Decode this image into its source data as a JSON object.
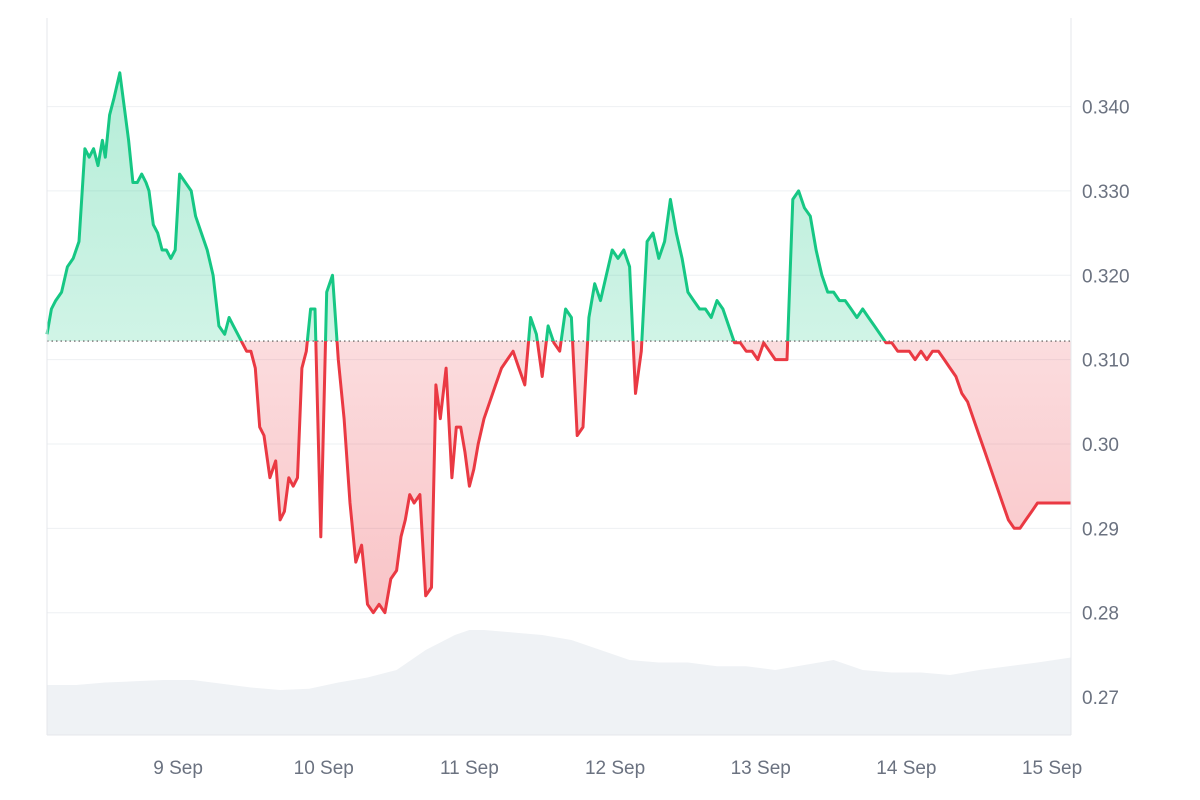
{
  "chart_data": {
    "type": "area",
    "baseline": 0.3122,
    "ylim": [
      0.2655,
      0.3505
    ],
    "y_ticks": [
      "0.340",
      "0.330",
      "0.320",
      "0.310",
      "0.30",
      "0.29",
      "0.28",
      "0.27"
    ],
    "y_tick_values": [
      0.34,
      0.33,
      0.32,
      0.31,
      0.3,
      0.29,
      0.28,
      0.27
    ],
    "x_ticks": [
      "9 Sep",
      "10 Sep",
      "11 Sep",
      "12 Sep",
      "13 Sep",
      "14 Sep",
      "15 Sep"
    ],
    "x_tick_values": [
      1,
      2,
      3,
      4,
      5,
      6,
      7
    ],
    "xlim": [
      0.1,
      7.13
    ],
    "grid": true,
    "colors": {
      "up": "#16c784",
      "down": "#ea3943",
      "grid": "#eef0f3",
      "baseline": "#555555",
      "volume": "#eff2f5",
      "axis_text": "#6b7280"
    },
    "price": {
      "x": [
        0.1,
        0.13,
        0.16,
        0.2,
        0.24,
        0.28,
        0.32,
        0.36,
        0.39,
        0.42,
        0.45,
        0.48,
        0.5,
        0.53,
        0.56,
        0.6,
        0.63,
        0.66,
        0.69,
        0.72,
        0.75,
        0.78,
        0.8,
        0.83,
        0.86,
        0.89,
        0.92,
        0.95,
        0.98,
        1.01,
        1.05,
        1.09,
        1.12,
        1.16,
        1.2,
        1.24,
        1.28,
        1.32,
        1.35,
        1.38,
        1.41,
        1.44,
        1.47,
        1.5,
        1.53,
        1.56,
        1.59,
        1.63,
        1.67,
        1.7,
        1.73,
        1.76,
        1.79,
        1.82,
        1.85,
        1.88,
        1.91,
        1.94,
        1.98,
        2.02,
        2.06,
        2.1,
        2.14,
        2.18,
        2.22,
        2.26,
        2.3,
        2.34,
        2.38,
        2.42,
        2.46,
        2.5,
        2.53,
        2.56,
        2.59,
        2.62,
        2.66,
        2.7,
        2.74,
        2.77,
        2.8,
        2.84,
        2.88,
        2.91,
        2.94,
        2.97,
        3.0,
        3.03,
        3.06,
        3.1,
        3.14,
        3.18,
        3.22,
        3.26,
        3.3,
        3.34,
        3.38,
        3.42,
        3.46,
        3.5,
        3.54,
        3.58,
        3.62,
        3.66,
        3.7,
        3.74,
        3.78,
        3.82,
        3.86,
        3.9,
        3.94,
        3.98,
        4.02,
        4.06,
        4.1,
        4.14,
        4.18,
        4.22,
        4.26,
        4.3,
        4.34,
        4.38,
        4.42,
        4.46,
        4.5,
        4.54,
        4.58,
        4.62,
        4.66,
        4.7,
        4.74,
        4.78,
        4.82,
        4.86,
        4.9,
        4.94,
        4.98,
        5.02,
        5.06,
        5.1,
        5.14,
        5.18,
        5.22,
        5.26,
        5.3,
        5.34,
        5.38,
        5.42,
        5.46,
        5.5,
        5.54,
        5.58,
        5.62,
        5.66,
        5.7,
        5.74,
        5.78,
        5.82,
        5.86,
        5.9,
        5.94,
        5.98,
        6.02,
        6.06,
        6.1,
        6.14,
        6.18,
        6.22,
        6.26,
        6.3,
        6.34,
        6.38,
        6.42,
        6.46,
        6.5,
        6.54,
        6.58,
        6.62,
        6.66,
        6.7,
        6.74,
        6.78,
        6.82,
        6.86,
        6.9,
        6.94,
        6.98,
        7.02,
        7.06,
        7.1,
        7.13
      ],
      "y": [
        0.313,
        0.316,
        0.317,
        0.318,
        0.321,
        0.322,
        0.324,
        0.335,
        0.334,
        0.335,
        0.333,
        0.336,
        0.334,
        0.339,
        0.341,
        0.344,
        0.34,
        0.336,
        0.331,
        0.331,
        0.332,
        0.331,
        0.33,
        0.326,
        0.325,
        0.323,
        0.323,
        0.322,
        0.323,
        0.332,
        0.331,
        0.33,
        0.327,
        0.325,
        0.323,
        0.32,
        0.314,
        0.313,
        0.315,
        0.314,
        0.313,
        0.312,
        0.311,
        0.311,
        0.309,
        0.302,
        0.301,
        0.296,
        0.298,
        0.291,
        0.292,
        0.296,
        0.295,
        0.296,
        0.309,
        0.311,
        0.316,
        0.316,
        0.289,
        0.318,
        0.32,
        0.31,
        0.303,
        0.293,
        0.286,
        0.288,
        0.281,
        0.28,
        0.281,
        0.28,
        0.284,
        0.285,
        0.289,
        0.291,
        0.294,
        0.293,
        0.294,
        0.282,
        0.283,
        0.307,
        0.303,
        0.309,
        0.296,
        0.302,
        0.302,
        0.299,
        0.295,
        0.297,
        0.3,
        0.303,
        0.305,
        0.307,
        0.309,
        0.31,
        0.311,
        0.309,
        0.307,
        0.315,
        0.313,
        0.308,
        0.314,
        0.312,
        0.311,
        0.316,
        0.315,
        0.301,
        0.302,
        0.315,
        0.319,
        0.317,
        0.32,
        0.323,
        0.322,
        0.323,
        0.321,
        0.306,
        0.311,
        0.324,
        0.325,
        0.322,
        0.324,
        0.329,
        0.325,
        0.322,
        0.318,
        0.317,
        0.316,
        0.316,
        0.315,
        0.317,
        0.316,
        0.314,
        0.312,
        0.312,
        0.311,
        0.311,
        0.31,
        0.312,
        0.311,
        0.31,
        0.31,
        0.31,
        0.329,
        0.33,
        0.328,
        0.327,
        0.323,
        0.32,
        0.318,
        0.318,
        0.317,
        0.317,
        0.316,
        0.315,
        0.316,
        0.315,
        0.314,
        0.313,
        0.312,
        0.312,
        0.311,
        0.311,
        0.311,
        0.31,
        0.311,
        0.31,
        0.311,
        0.311,
        0.31,
        0.309,
        0.308,
        0.306,
        0.305,
        0.303,
        0.301,
        0.299,
        0.297,
        0.295,
        0.293,
        0.291,
        0.29,
        0.29,
        0.291,
        0.292,
        0.293,
        0.293,
        0.293,
        0.293,
        0.293,
        0.293,
        0.293
      ]
    },
    "volume": {
      "x": [
        0.1,
        0.3,
        0.5,
        0.7,
        0.9,
        1.1,
        1.3,
        1.5,
        1.7,
        1.9,
        2.1,
        2.3,
        2.5,
        2.7,
        2.9,
        3.0,
        3.1,
        3.3,
        3.5,
        3.7,
        3.9,
        4.1,
        4.3,
        4.5,
        4.7,
        4.9,
        5.1,
        5.3,
        5.5,
        5.7,
        5.9,
        6.1,
        6.3,
        6.5,
        6.7,
        6.9,
        7.13
      ],
      "y": [
        0.4,
        0.4,
        0.42,
        0.43,
        0.44,
        0.44,
        0.41,
        0.38,
        0.36,
        0.37,
        0.42,
        0.46,
        0.52,
        0.68,
        0.8,
        0.84,
        0.84,
        0.82,
        0.8,
        0.76,
        0.68,
        0.6,
        0.58,
        0.58,
        0.55,
        0.55,
        0.52,
        0.56,
        0.6,
        0.52,
        0.5,
        0.5,
        0.48,
        0.52,
        0.55,
        0.58,
        0.62
      ]
    }
  }
}
